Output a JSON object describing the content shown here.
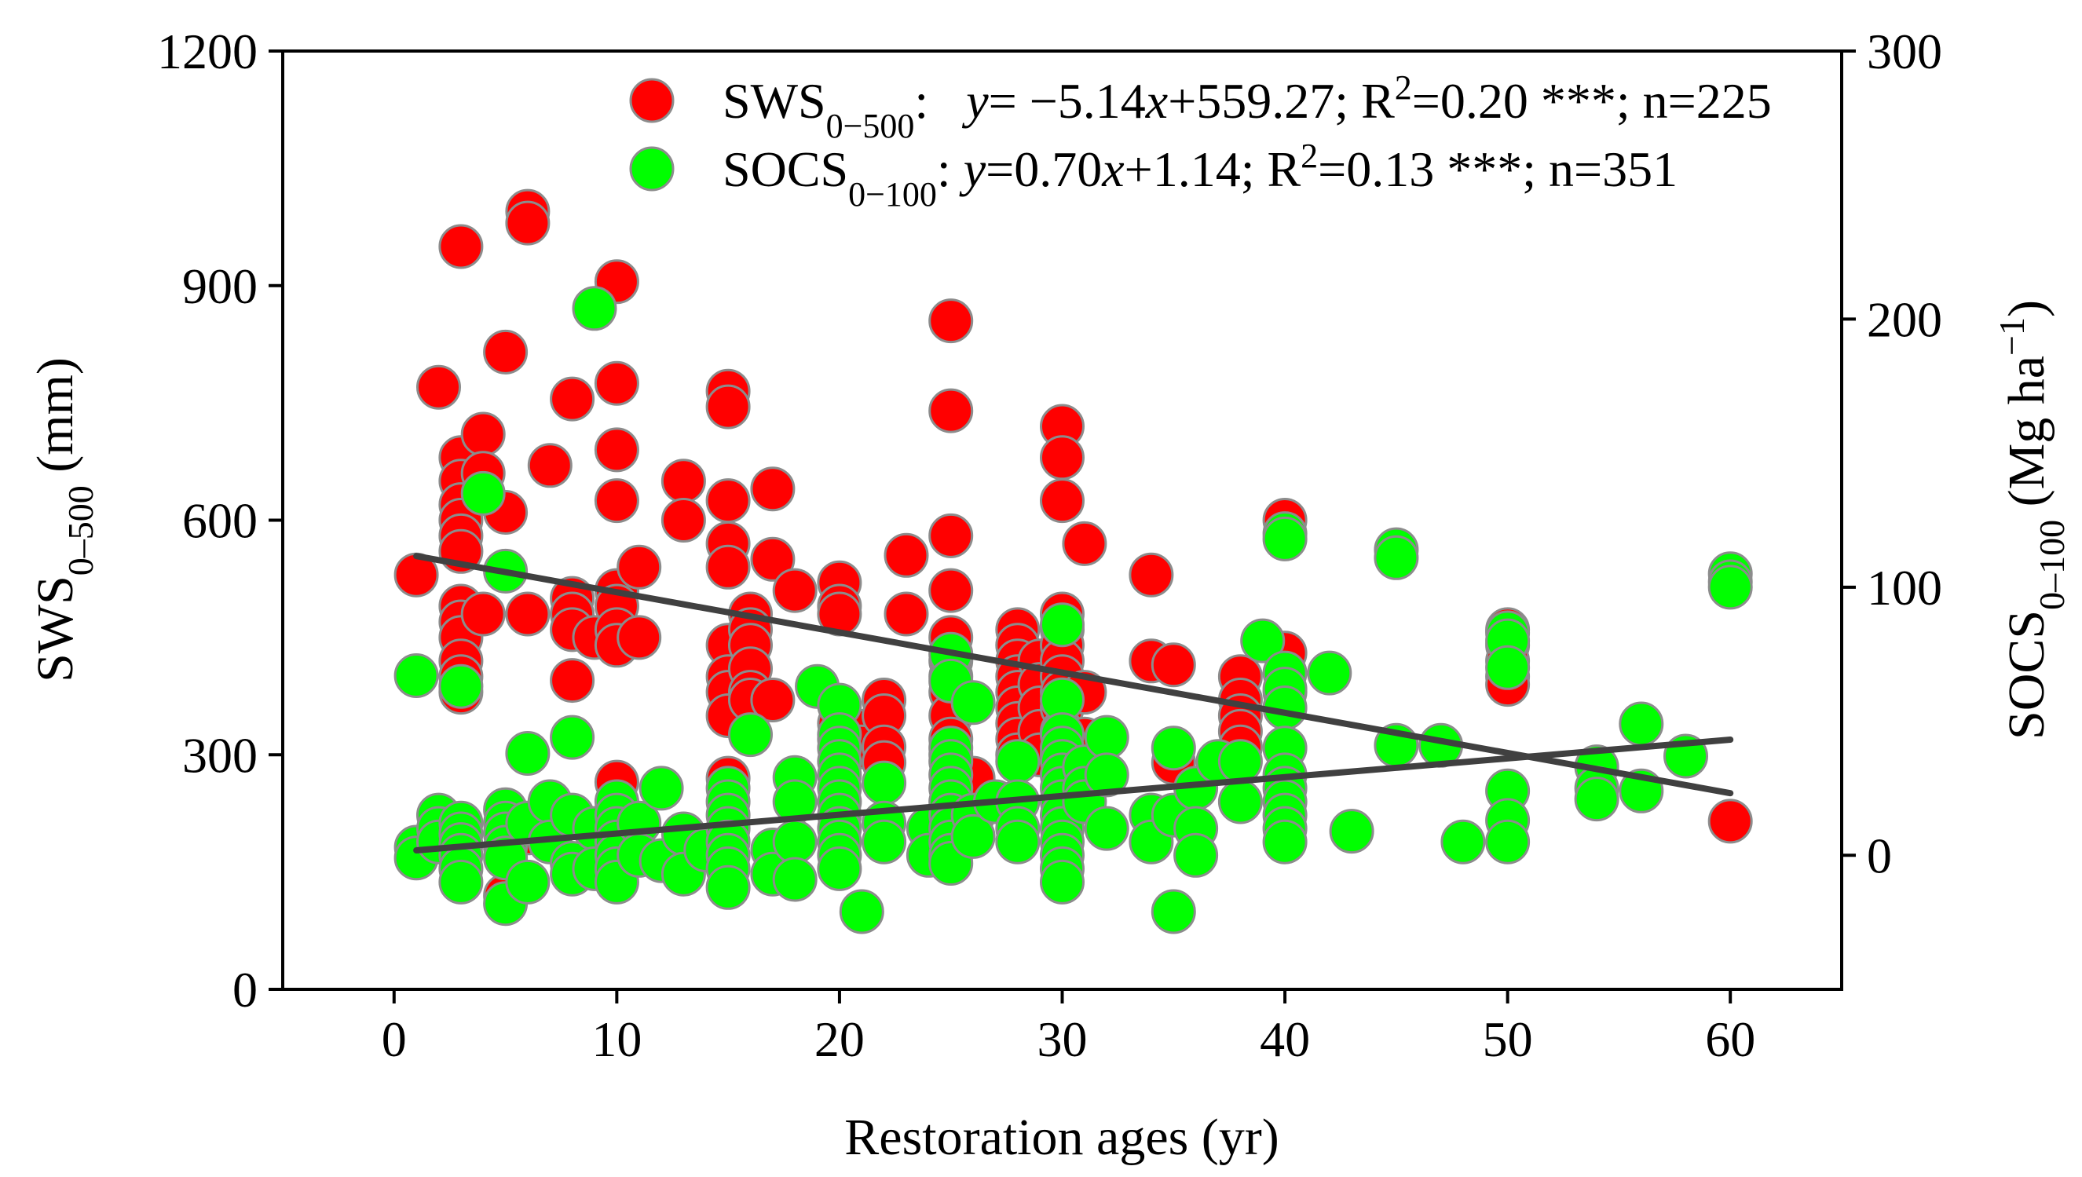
{
  "chart_data": {
    "type": "scatter",
    "xlabel": "Restoration ages (yr)",
    "ylabel_left": {
      "main": "SWS",
      "sub": "0–500",
      "unit": " (mm)"
    },
    "ylabel_right": {
      "main": "SOCS",
      "sub": "0–100",
      "unit_pre": " (Mg ha",
      "sup": "−1",
      "unit_post": ")"
    },
    "xlim": [
      -5,
      65
    ],
    "ylim_left": [
      0,
      1200
    ],
    "ylim_right": [
      -50,
      300
    ],
    "xticks": [
      "0",
      "10",
      "20",
      "30",
      "40",
      "50",
      "60"
    ],
    "yticks_left": [
      "0",
      "300",
      "600",
      "900",
      "1200"
    ],
    "yticks_right": [
      "0",
      "100",
      "200",
      "300"
    ],
    "legend_position": "top-right",
    "series": [
      {
        "key": "sws",
        "name": "SWS",
        "name_sub": "0−500",
        "axis": "left",
        "color": "#ff0000",
        "edge_color": "#8c8c8c",
        "legend_eq": {
          "sep": ":   ",
          "y": "y",
          "mid": "= −5.14",
          "x": "x",
          "rest": "+559.27; R",
          "sup": "2",
          "tail": "=0.20 ***; n=225"
        },
        "fit": {
          "slope": -5.14,
          "intercept": 559.27
        },
        "points": [
          [
            1,
            530
          ],
          [
            2,
            770
          ],
          [
            3,
            950
          ],
          [
            3,
            680
          ],
          [
            3,
            650
          ],
          [
            3,
            620
          ],
          [
            3,
            600
          ],
          [
            3,
            580
          ],
          [
            3,
            560
          ],
          [
            3,
            490
          ],
          [
            3,
            470
          ],
          [
            3,
            450
          ],
          [
            3,
            420
          ],
          [
            3,
            400
          ],
          [
            3,
            380
          ],
          [
            4,
            710
          ],
          [
            4,
            660
          ],
          [
            4,
            480
          ],
          [
            5,
            815
          ],
          [
            5,
            610
          ],
          [
            5,
            200
          ],
          [
            5,
            120
          ],
          [
            6,
            995
          ],
          [
            6,
            980
          ],
          [
            6,
            480
          ],
          [
            6,
            200
          ],
          [
            7,
            670
          ],
          [
            7,
            200
          ],
          [
            8,
            755
          ],
          [
            8,
            500
          ],
          [
            8,
            480
          ],
          [
            8,
            460
          ],
          [
            8,
            395
          ],
          [
            9,
            450
          ],
          [
            10,
            905
          ],
          [
            10,
            775
          ],
          [
            10,
            690
          ],
          [
            10,
            625
          ],
          [
            10,
            510
          ],
          [
            10,
            490
          ],
          [
            10,
            460
          ],
          [
            10,
            440
          ],
          [
            10,
            265
          ],
          [
            11,
            540
          ],
          [
            11,
            450
          ],
          [
            13,
            650
          ],
          [
            13,
            600
          ],
          [
            15,
            765
          ],
          [
            15,
            745
          ],
          [
            15,
            625
          ],
          [
            15,
            570
          ],
          [
            15,
            540
          ],
          [
            15,
            440
          ],
          [
            15,
            400
          ],
          [
            15,
            380
          ],
          [
            15,
            350
          ],
          [
            15,
            270
          ],
          [
            16,
            480
          ],
          [
            16,
            460
          ],
          [
            16,
            440
          ],
          [
            16,
            410
          ],
          [
            16,
            380
          ],
          [
            16,
            370
          ],
          [
            17,
            640
          ],
          [
            17,
            550
          ],
          [
            17,
            370
          ],
          [
            18,
            510
          ],
          [
            20,
            520
          ],
          [
            20,
            490
          ],
          [
            20,
            480
          ],
          [
            20,
            340
          ],
          [
            20,
            320
          ],
          [
            21,
            330
          ],
          [
            21,
            310
          ],
          [
            22,
            370
          ],
          [
            22,
            350
          ],
          [
            22,
            310
          ],
          [
            22,
            290
          ],
          [
            23,
            555
          ],
          [
            23,
            480
          ],
          [
            25,
            855
          ],
          [
            25,
            740
          ],
          [
            25,
            580
          ],
          [
            25,
            510
          ],
          [
            25,
            450
          ],
          [
            25,
            420
          ],
          [
            25,
            400
          ],
          [
            25,
            380
          ],
          [
            25,
            350
          ],
          [
            25,
            320
          ],
          [
            25,
            300
          ],
          [
            26,
            270
          ],
          [
            28,
            460
          ],
          [
            28,
            440
          ],
          [
            28,
            420
          ],
          [
            28,
            400
          ],
          [
            28,
            380
          ],
          [
            28,
            360
          ],
          [
            28,
            340
          ],
          [
            28,
            320
          ],
          [
            28,
            300
          ],
          [
            29,
            420
          ],
          [
            29,
            390
          ],
          [
            29,
            360
          ],
          [
            29,
            330
          ],
          [
            29,
            300
          ],
          [
            30,
            720
          ],
          [
            30,
            680
          ],
          [
            30,
            625
          ],
          [
            30,
            480
          ],
          [
            30,
            460
          ],
          [
            30,
            440
          ],
          [
            30,
            420
          ],
          [
            30,
            400
          ],
          [
            30,
            380
          ],
          [
            30,
            360
          ],
          [
            30,
            330
          ],
          [
            30,
            300
          ],
          [
            31,
            570
          ],
          [
            31,
            380
          ],
          [
            31,
            320
          ],
          [
            31,
            300
          ],
          [
            34,
            530
          ],
          [
            34,
            420
          ],
          [
            35,
            415
          ],
          [
            35,
            290
          ],
          [
            38,
            400
          ],
          [
            38,
            370
          ],
          [
            38,
            350
          ],
          [
            38,
            330
          ],
          [
            38,
            310
          ],
          [
            40,
            600
          ],
          [
            40,
            430
          ],
          [
            40,
            380
          ],
          [
            50,
            460
          ],
          [
            50,
            440
          ],
          [
            50,
            420
          ],
          [
            50,
            400
          ],
          [
            50,
            390
          ],
          [
            60,
            215
          ]
        ]
      },
      {
        "key": "socs",
        "name": "SOCS",
        "name_sub": "0−100",
        "axis": "right",
        "color": "#00ff00",
        "edge_color": "#8c8c8c",
        "legend_eq": {
          "sep": ": ",
          "y": "y",
          "mid": "=0.70",
          "x": "x",
          "rest": "+1.14; R",
          "sup": "2",
          "tail": "=0.13 ***; n=351"
        },
        "fit": {
          "slope": 0.7,
          "intercept": 1.14
        },
        "points": [
          [
            1,
            67
          ],
          [
            1,
            3
          ],
          [
            1,
            -1
          ],
          [
            2,
            15
          ],
          [
            2,
            10
          ],
          [
            2,
            5
          ],
          [
            3,
            12
          ],
          [
            3,
            8
          ],
          [
            3,
            4
          ],
          [
            3,
            0
          ],
          [
            3,
            -5
          ],
          [
            3,
            -10
          ],
          [
            3,
            63
          ],
          [
            4,
            135
          ],
          [
            5,
            106
          ],
          [
            5,
            17
          ],
          [
            5,
            12
          ],
          [
            5,
            8
          ],
          [
            5,
            3
          ],
          [
            5,
            -1
          ],
          [
            5,
            -18
          ],
          [
            6,
            38
          ],
          [
            6,
            12
          ],
          [
            6,
            -10
          ],
          [
            7,
            20
          ],
          [
            7,
            5
          ],
          [
            8,
            44
          ],
          [
            8,
            15
          ],
          [
            8,
            -3
          ],
          [
            8,
            -7
          ],
          [
            9,
            204
          ],
          [
            9,
            10
          ],
          [
            9,
            -5
          ],
          [
            10,
            20
          ],
          [
            10,
            15
          ],
          [
            10,
            10
          ],
          [
            10,
            5
          ],
          [
            10,
            0
          ],
          [
            10,
            -5
          ],
          [
            10,
            -10
          ],
          [
            11,
            12
          ],
          [
            11,
            0
          ],
          [
            12,
            25
          ],
          [
            12,
            -2
          ],
          [
            13,
            8
          ],
          [
            13,
            -7
          ],
          [
            14,
            2
          ],
          [
            15,
            25
          ],
          [
            15,
            20
          ],
          [
            15,
            15
          ],
          [
            15,
            10
          ],
          [
            15,
            5
          ],
          [
            15,
            0
          ],
          [
            15,
            -5
          ],
          [
            15,
            -12
          ],
          [
            16,
            45
          ],
          [
            17,
            2
          ],
          [
            17,
            -7
          ],
          [
            18,
            29
          ],
          [
            18,
            20
          ],
          [
            18,
            5
          ],
          [
            18,
            -9
          ],
          [
            19,
            63
          ],
          [
            20,
            56
          ],
          [
            20,
            45
          ],
          [
            20,
            40
          ],
          [
            20,
            35
          ],
          [
            20,
            30
          ],
          [
            20,
            25
          ],
          [
            20,
            20
          ],
          [
            20,
            15
          ],
          [
            20,
            10
          ],
          [
            20,
            5
          ],
          [
            20,
            0
          ],
          [
            20,
            -5
          ],
          [
            21,
            -21
          ],
          [
            22,
            27
          ],
          [
            22,
            12
          ],
          [
            22,
            5
          ],
          [
            24,
            10
          ],
          [
            24,
            0
          ],
          [
            25,
            75
          ],
          [
            25,
            65
          ],
          [
            25,
            40
          ],
          [
            25,
            35
          ],
          [
            25,
            30
          ],
          [
            25,
            25
          ],
          [
            25,
            20
          ],
          [
            25,
            15
          ],
          [
            25,
            10
          ],
          [
            25,
            5
          ],
          [
            25,
            0
          ],
          [
            25,
            -3
          ],
          [
            26,
            57
          ],
          [
            26,
            15
          ],
          [
            26,
            7
          ],
          [
            27,
            20
          ],
          [
            28,
            35
          ],
          [
            28,
            20
          ],
          [
            28,
            10
          ],
          [
            28,
            5
          ],
          [
            30,
            86
          ],
          [
            30,
            58
          ],
          [
            30,
            45
          ],
          [
            30,
            40
          ],
          [
            30,
            35
          ],
          [
            30,
            30
          ],
          [
            30,
            25
          ],
          [
            30,
            20
          ],
          [
            30,
            15
          ],
          [
            30,
            10
          ],
          [
            30,
            5
          ],
          [
            30,
            0
          ],
          [
            30,
            -5
          ],
          [
            30,
            -10
          ],
          [
            31,
            33
          ],
          [
            31,
            25
          ],
          [
            31,
            20
          ],
          [
            32,
            44
          ],
          [
            32,
            30
          ],
          [
            32,
            10
          ],
          [
            34,
            15
          ],
          [
            34,
            5
          ],
          [
            35,
            40
          ],
          [
            35,
            15
          ],
          [
            35,
            -21
          ],
          [
            36,
            25
          ],
          [
            36,
            10
          ],
          [
            36,
            0
          ],
          [
            37,
            35
          ],
          [
            38,
            35
          ],
          [
            38,
            20
          ],
          [
            39,
            80
          ],
          [
            40,
            120
          ],
          [
            40,
            118
          ],
          [
            40,
            68
          ],
          [
            40,
            62
          ],
          [
            40,
            55
          ],
          [
            40,
            40
          ],
          [
            40,
            30
          ],
          [
            40,
            25
          ],
          [
            40,
            20
          ],
          [
            40,
            15
          ],
          [
            40,
            10
          ],
          [
            40,
            5
          ],
          [
            42,
            68
          ],
          [
            43,
            9
          ],
          [
            45,
            114
          ],
          [
            45,
            111
          ],
          [
            45,
            41
          ],
          [
            47,
            41
          ],
          [
            48,
            5
          ],
          [
            50,
            83
          ],
          [
            50,
            80
          ],
          [
            50,
            70
          ],
          [
            50,
            24
          ],
          [
            50,
            13
          ],
          [
            50,
            5
          ],
          [
            54,
            33
          ],
          [
            54,
            25
          ],
          [
            54,
            21
          ],
          [
            56,
            49
          ],
          [
            56,
            24
          ],
          [
            58,
            37
          ],
          [
            60,
            105
          ],
          [
            60,
            102
          ],
          [
            60,
            100
          ]
        ]
      }
    ]
  }
}
